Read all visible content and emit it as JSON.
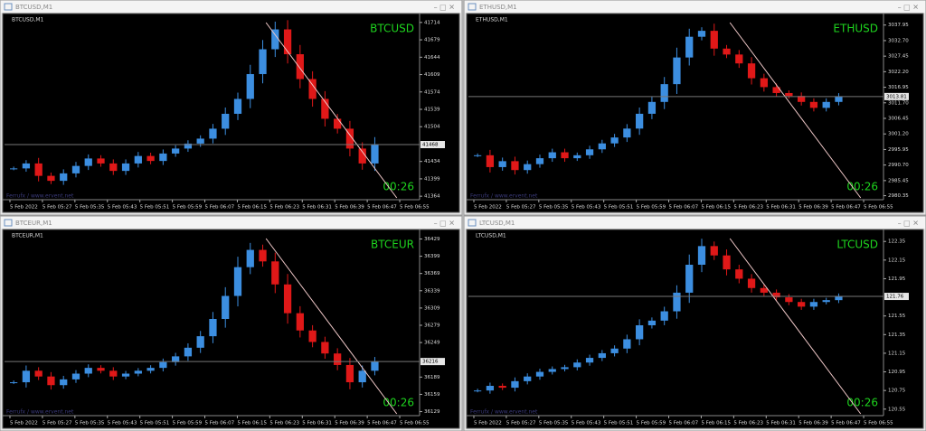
{
  "time_axis": [
    "5 Feb 2022",
    "5 Feb 05:27",
    "5 Feb 05:35",
    "5 Feb 05:43",
    "5 Feb 05:51",
    "5 Feb 05:59",
    "5 Feb 06:07",
    "5 Feb 06:15",
    "5 Feb 06:23",
    "5 Feb 06:31",
    "5 Feb 06:39",
    "5 Feb 06:47",
    "5 Feb 06:55"
  ],
  "panels": [
    {
      "window_title": "BTCUSD,M1",
      "chart_label": "BTCUSD,M1",
      "symbol": "BTCUSD",
      "timer": "00:26",
      "watermark": "Ferrufx / www.ervent.net",
      "current_price": 41468,
      "ylim": [
        41357,
        41721
      ],
      "yticks": [
        41714,
        41679,
        41644,
        41609,
        41574,
        41539,
        41504,
        41434,
        41399,
        41364
      ],
      "closes": [
        41420,
        41430,
        41405,
        41395,
        41410,
        41425,
        41440,
        41430,
        41415,
        41430,
        41445,
        41435,
        41450,
        41460,
        41470,
        41480,
        41500,
        41530,
        41560,
        41610,
        41660,
        41700,
        41650,
        41600,
        41560,
        41520,
        41500,
        41460,
        41430,
        41468
      ]
    },
    {
      "window_title": "ETHUSD,M1",
      "chart_label": "ETHUSD,M1",
      "symbol": "ETHUSD",
      "timer": "00:26",
      "watermark": "Ferrufx / www.ervent.net",
      "current_price": 3013.81,
      "ylim": [
        2979,
        3040
      ],
      "yticks": [
        3037.95,
        {
          "value": 3032.7,
          "label": "3032.70"
        },
        3027.45,
        {
          "value": 3022.2,
          "label": "3022.20"
        },
        3016.95,
        {
          "value": 3011.7,
          "label": "3011.70"
        },
        3006.45,
        {
          "value": 3001.2,
          "label": "3001.20"
        },
        2995.95,
        {
          "value": 2990.7,
          "label": "2990.70"
        },
        2985.45,
        2980.35
      ],
      "closes": [
        2994,
        2990,
        2992,
        2989,
        2991,
        2993,
        2995,
        2993,
        2994,
        2996,
        2998,
        3000,
        3003,
        3008,
        3012,
        3018,
        3027,
        3034,
        3036,
        3030,
        3028,
        3025,
        3020,
        3017,
        3015,
        3014,
        3012,
        3010,
        3012,
        3013.81
      ]
    },
    {
      "window_title": "BTCEUR,M1",
      "chart_label": "BTCEUR,M1",
      "symbol": "BTCEUR",
      "timer": "00:26",
      "watermark": "Ferrufx / www.ervent.net",
      "current_price": 36216,
      "ylim": [
        36122,
        36436
      ],
      "yticks": [
        36429,
        36399,
        36369,
        36339,
        36309,
        36279,
        36249,
        36189,
        36159,
        36129
      ],
      "closes": [
        36180,
        36200,
        36190,
        36175,
        36185,
        36195,
        36205,
        36200,
        36190,
        36195,
        36200,
        36205,
        36215,
        36225,
        36240,
        36260,
        36290,
        36330,
        36380,
        36410,
        36390,
        36350,
        36300,
        36270,
        36250,
        36230,
        36210,
        36180,
        36200,
        36216
      ]
    },
    {
      "window_title": "LTCUSD,M1",
      "chart_label": "LTCUSD,M1",
      "symbol": "LTCUSD",
      "timer": "00:26",
      "watermark": "Ferrufx / www.ervent.net",
      "current_price": 121.76,
      "ylim": [
        120.48,
        122.42
      ],
      "yticks": [
        122.35,
        122.15,
        121.95,
        121.55,
        121.35,
        121.15,
        120.95,
        120.75,
        120.55
      ],
      "closes": [
        120.75,
        120.8,
        120.78,
        120.85,
        120.9,
        120.95,
        120.98,
        121.0,
        121.05,
        121.1,
        121.15,
        121.2,
        121.3,
        121.45,
        121.5,
        121.6,
        121.8,
        122.1,
        122.3,
        122.2,
        122.05,
        121.95,
        121.85,
        121.8,
        121.75,
        121.7,
        121.65,
        121.7,
        121.72,
        121.76
      ]
    }
  ]
}
